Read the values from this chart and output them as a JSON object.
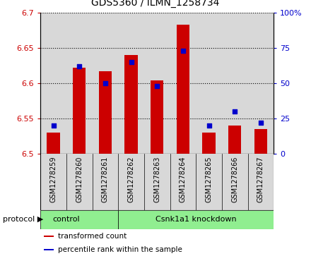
{
  "title": "GDS5360 / ILMN_1258734",
  "samples": [
    "GSM1278259",
    "GSM1278260",
    "GSM1278261",
    "GSM1278262",
    "GSM1278263",
    "GSM1278264",
    "GSM1278265",
    "GSM1278266",
    "GSM1278267"
  ],
  "transformed_counts": [
    6.53,
    6.622,
    6.617,
    6.64,
    6.604,
    6.683,
    6.53,
    6.54,
    6.535
  ],
  "percentile_ranks": [
    20,
    62,
    50,
    65,
    48,
    73,
    20,
    30,
    22
  ],
  "ylim_left": [
    6.5,
    6.7
  ],
  "ylim_right": [
    0,
    100
  ],
  "yticks_left": [
    6.5,
    6.55,
    6.6,
    6.65,
    6.7
  ],
  "yticks_right": [
    0,
    25,
    50,
    75,
    100
  ],
  "ytick_labels_left": [
    "6.5",
    "6.55",
    "6.6",
    "6.65",
    "6.7"
  ],
  "ytick_labels_right": [
    "0",
    "25",
    "50",
    "75",
    "100%"
  ],
  "bar_color": "#cc0000",
  "dot_color": "#0000cc",
  "bar_width": 0.5,
  "control_count": 3,
  "group_labels": [
    "control",
    "Csnk1a1 knockdown"
  ],
  "group_color": "#90ee90",
  "protocol_label": "protocol ▶",
  "legend_items": [
    {
      "label": "transformed count",
      "color": "#cc0000"
    },
    {
      "label": "percentile rank within the sample",
      "color": "#0000cc"
    }
  ],
  "tick_label_color_left": "#cc0000",
  "tick_label_color_right": "#0000cc",
  "col_bg_color": "#d8d8d8",
  "fig_bg_color": "#ffffff"
}
